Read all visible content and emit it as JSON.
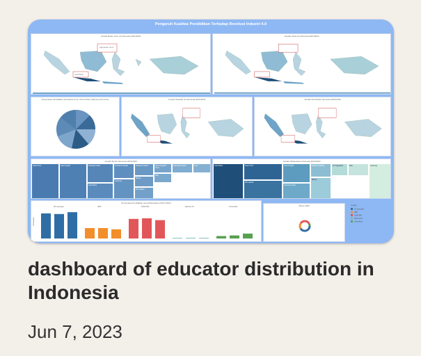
{
  "card": {
    "title": "dashboard of educator distribution in Indonesia",
    "date": "Jun 7, 2023"
  },
  "dashboard": {
    "title": "Pengaruh Kualitas Pendidikan Terhadap Revolusi Industri 4.0",
    "panels": {
      "map1_title": "Jumlah Rasio Guru di Indonesia 2021/2022",
      "map2_title": "Jumlah Kelas di Indonesia 2021/2022",
      "pie_title": "Persentase Pendidikan Penduduk Umur 15-24 Tahun (Menurut Provinsi)",
      "map3_title": "Jumlah Sekolah di Indonesia 2021/2022",
      "map4_title": "Jumlah Penduduk Indonesia 2021/2022",
      "treemap1_title": "Jumlah Murid Indonesia 2021/2022",
      "treemap2_title": "Jumlah Mahasiswa Indonesia 2021/2022",
      "bar_title": "Persentase Pendidikan yang Ditamatkan (2021-2022)",
      "donut_title": "Tahun 2022"
    },
    "map_callouts": {
      "label_a": "Kalimantan Timur",
      "label_b": "Jawa Barat"
    },
    "bar_groups": [
      "SD sederajat",
      "SMP",
      "SMA/SMK",
      "Diploma I/II",
      "Universitas"
    ],
    "bar_ylabel": "Persentase",
    "legend": {
      "title": "Jenjang",
      "items": [
        "SD sederajat",
        "SMP",
        "SMA/SMK",
        "Diploma I/II",
        "Universitas"
      ]
    },
    "treemap1_cells": [
      "Jawa Timur",
      "Jawa Tengah",
      "Sumatera Utara",
      "Jawa Barat",
      "Sumatera Selatan",
      "Lampung",
      "Sulawesi Selatan",
      "Banten",
      "DKI Jakarta",
      "Nusa Tenggara Timur",
      "Riau",
      "Kalimantan Barat",
      "Aceh"
    ],
    "treemap2_cells": [
      "Jawa Barat",
      "Jawa Timur",
      "DKI Jakarta",
      "Jawa Tengah",
      "Sumatera Utara",
      "Sulawesi Selatan",
      "Banten",
      "DI Yogyakarta",
      "Riau",
      "Lampung"
    ],
    "colors": {
      "background": "#8eb8f4",
      "map_dark": "#1f4e79",
      "map_mid": "#6fa3c8",
      "map_light": "#b8d4e0",
      "bar_blue": "#2f6ea5",
      "bar_orange": "#f28e2b",
      "bar_red": "#e15759",
      "bar_teal": "#76b7b2",
      "bar_green": "#59a14f"
    }
  },
  "chart_data": {
    "type": "bar",
    "title": "Persentase Pendidikan yang Ditamatkan (2021-2022)",
    "ylabel": "Persentase",
    "series": [
      {
        "name": "SD sederajat",
        "values": [
          41,
          40,
          43
        ]
      },
      {
        "name": "SMP",
        "values": [
          17,
          17,
          15
        ]
      },
      {
        "name": "SMA/SMK",
        "values": [
          32,
          33,
          30
        ]
      },
      {
        "name": "Diploma I/II",
        "values": [
          1,
          1,
          1
        ]
      },
      {
        "name": "Universitas",
        "values": [
          4,
          5,
          8
        ]
      }
    ]
  }
}
